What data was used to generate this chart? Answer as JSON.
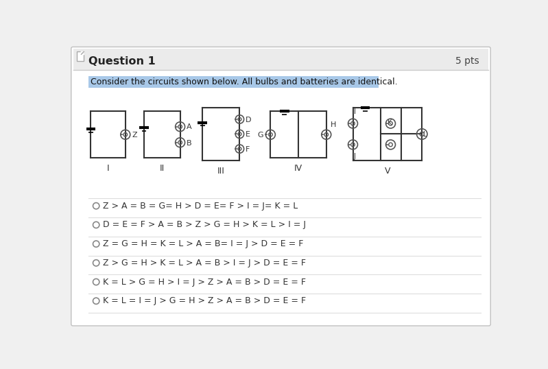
{
  "title": "Question 1",
  "pts": "5 pts",
  "highlight_text": "Consider the circuits shown below. All bulbs and batteries are identical.",
  "highlight_color": "#a8c8e8",
  "background_color": "#f0f0f0",
  "content_background": "#ffffff",
  "header_background": "#e8e8e8",
  "header_line_color": "#cccccc",
  "options": [
    "Z > A = B = G= H > D = E= F > I = J= K = L",
    "D = E = F > A = B > Z > G = H > K = L > I = J",
    "Z = G = H = K = L > A = B= I = J > D = E = F",
    "Z > G = H > K = L > A = B > I = J > D = E = F",
    "K = L > G = H > I = J > Z > A = B > D = E = F",
    "K = L = I = J > G = H > Z > A = B > D = E = F"
  ]
}
